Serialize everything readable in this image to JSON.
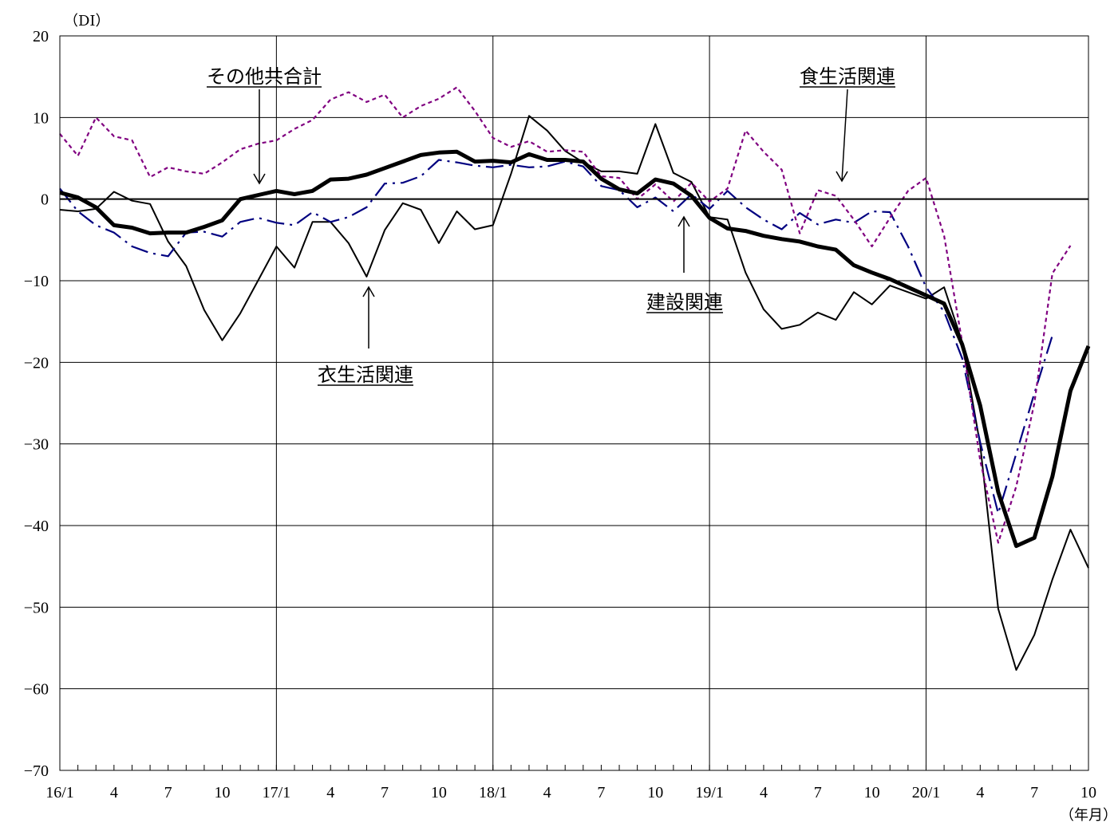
{
  "chart_data": {
    "type": "line",
    "ylabel": "（DI）",
    "xlabel": "（年月）",
    "ylim": [
      -70,
      20
    ],
    "y_ticks": [
      20,
      10,
      0,
      -10,
      -20,
      -30,
      -40,
      -50,
      -60,
      -70
    ],
    "y_tick_labels": [
      "20",
      "10",
      "0",
      "−10",
      "−20",
      "−30",
      "−40",
      "−50",
      "−60",
      "−70"
    ],
    "x_tick_labels": [
      "16/1",
      "4",
      "7",
      "10",
      "17/1",
      "4",
      "7",
      "10",
      "18/1",
      "4",
      "7",
      "10",
      "19/1",
      "4",
      "7",
      "10",
      "20/1",
      "4",
      "7",
      "10"
    ],
    "grid": true,
    "series": [
      {
        "name": "その他共合計",
        "color": "#000000",
        "values": [
          0.8,
          0.2,
          -1,
          -3.2,
          -3.5,
          -4.2,
          -4.1,
          -4.1,
          -3.4,
          -2.6,
          0,
          0.5,
          1,
          0.6,
          1,
          2.4,
          2.5,
          3,
          3.8,
          4.6,
          5.4,
          5.7,
          5.8,
          4.6,
          4.7,
          4.5,
          5.5,
          4.8,
          4.8,
          4.6,
          2.5,
          1.2,
          0.7,
          2.4,
          1.9,
          0.4,
          -2.3,
          -3.6,
          -3.9,
          -4.5,
          -4.9,
          -5.2,
          -5.8,
          -6.2,
          -8.1,
          -9,
          -9.8,
          -10.8,
          -11.8,
          -12.8,
          -17.8,
          -25.3,
          -35.9,
          -42.5,
          -41.5,
          -34,
          -23.5,
          -18
        ]
      },
      {
        "name": "衣生活関連",
        "color": "#000000",
        "values": [
          -1.3,
          -1.5,
          -1.2,
          0.9,
          -0.2,
          -0.6,
          -5.2,
          -8.2,
          -13.6,
          -17.3,
          -14,
          -9.9,
          -5.8,
          -8.4,
          -2.8,
          -2.8,
          -5.4,
          -9.5,
          -3.8,
          -0.5,
          -1.3,
          -5.4,
          -1.5,
          -3.7,
          -3.2,
          3.1,
          10.2,
          8.4,
          5.9,
          4.5,
          3.4,
          3.4,
          3.1,
          9.2,
          3.2,
          2.1,
          -2.2,
          -2.5,
          -9,
          -13.5,
          -15.9,
          -15.4,
          -13.9,
          -14.8,
          -11.4,
          -12.9,
          -10.6,
          -11.4,
          -12.2,
          -10.8,
          -17.5,
          -30.1,
          -50.2,
          -57.7,
          -53.4,
          -46.6,
          -40.5,
          -45.2
        ]
      },
      {
        "name": "食生活関連",
        "color": "#800080",
        "values": [
          8,
          5.3,
          10,
          7.7,
          7.2,
          2.7,
          3.9,
          3.4,
          3.1,
          4.5,
          6.1,
          6.8,
          7.2,
          8.6,
          9.7,
          12.2,
          13.1,
          11.9,
          12.8,
          10,
          11.4,
          12.3,
          13.7,
          10.8,
          7.5,
          6.4,
          7.1,
          5.8,
          6,
          5.8,
          2.8,
          2.6,
          0,
          1.8,
          -0.3,
          2,
          -0.3,
          1.3,
          8.4,
          5.8,
          3.6,
          -4.2,
          1.1,
          0.4,
          -2.5,
          -5.8,
          -2.3,
          1,
          2.6,
          -4.5,
          -17.5,
          -32,
          -42.1,
          -35.2,
          -25,
          -9.1,
          -5.7
        ]
      },
      {
        "name": "建設関連",
        "color": "#000080",
        "values": [
          1.3,
          -1.5,
          -3.2,
          -4.1,
          -5.8,
          -6.6,
          -7,
          -4.1,
          -4,
          -4.6,
          -2.8,
          -2.3,
          -2.9,
          -3.2,
          -1.6,
          -2.8,
          -2.2,
          -1,
          1.9,
          2,
          2.8,
          4.8,
          4.5,
          4.1,
          3.9,
          4.2,
          3.9,
          4,
          4.6,
          4,
          1.6,
          1.1,
          -1,
          0.2,
          -1.5,
          0.6,
          -1.2,
          1,
          -1,
          -2.5,
          -3.7,
          -1.7,
          -3.1,
          -2.5,
          -2.9,
          -1.5,
          -1.6,
          -5.8,
          -10.8,
          -13.8,
          -19.5,
          -29.8,
          -38.5,
          -31.2,
          -23.8,
          -16.7
        ]
      }
    ],
    "annotations": [
      {
        "text": "その他共合計"
      },
      {
        "text": "衣生活関連"
      },
      {
        "text": "食生活関連"
      },
      {
        "text": "建設関連"
      }
    ]
  }
}
